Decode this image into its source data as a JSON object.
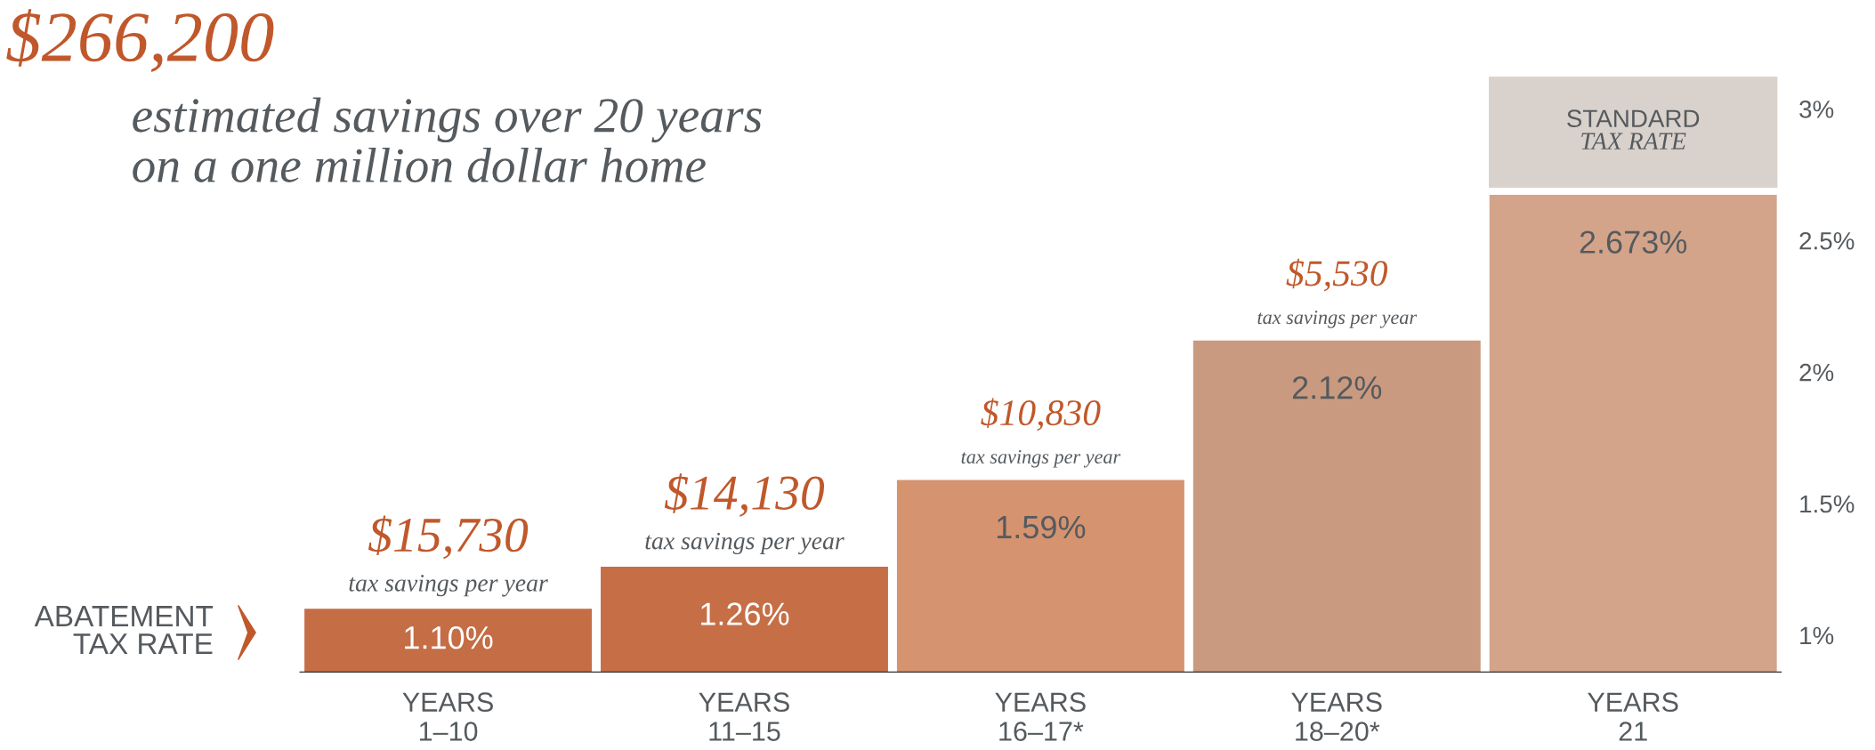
{
  "chart_data": {
    "type": "bar",
    "title": "$266,200",
    "subtitle": "estimated savings over 20 years\non a one million dollar home",
    "categories": [
      "YEARS\n1–10",
      "YEARS\n11–15",
      "YEARS\n16–17*",
      "YEARS\n18–20*",
      "YEARS\n21"
    ],
    "values": [
      1.1,
      1.26,
      1.59,
      2.12,
      2.673
    ],
    "value_labels": [
      "1.10%",
      "1.26%",
      "1.59%",
      "2.12%",
      "2.673%"
    ],
    "colors": [
      "#c56d45",
      "#c66f47",
      "#d5936f",
      "#c99a7f",
      "#d3a48a"
    ],
    "ylim": [
      0.86,
      3.14
    ],
    "yticks": [
      {
        "value": 1,
        "label": "1%"
      },
      {
        "value": 1.5,
        "label": "1.5%"
      },
      {
        "value": 2,
        "label": "2%"
      },
      {
        "value": 2.5,
        "label": "2.5%"
      },
      {
        "value": 3,
        "label": "3%"
      }
    ],
    "annotations": [
      "ABATEMENT\nTAX RATE",
      {
        "text": "$15,730\ntax savings per year",
        "x": "YEARS\n1–10",
        "y": 1.1
      },
      {
        "text": "$14,130\ntax savings per year",
        "x": "YEARS\n11–15",
        "y": 1.26
      },
      {
        "text": "$10,830\ntax savings per year",
        "x": "YEARS\n16–17*",
        "y": 1.59
      },
      {
        "text": "$5,530\ntax savings per year",
        "x": "YEARS\n18–20*",
        "y": 2.12
      },
      "STANDARD\nTAX RATE"
    ],
    "grid": false
  }
}
